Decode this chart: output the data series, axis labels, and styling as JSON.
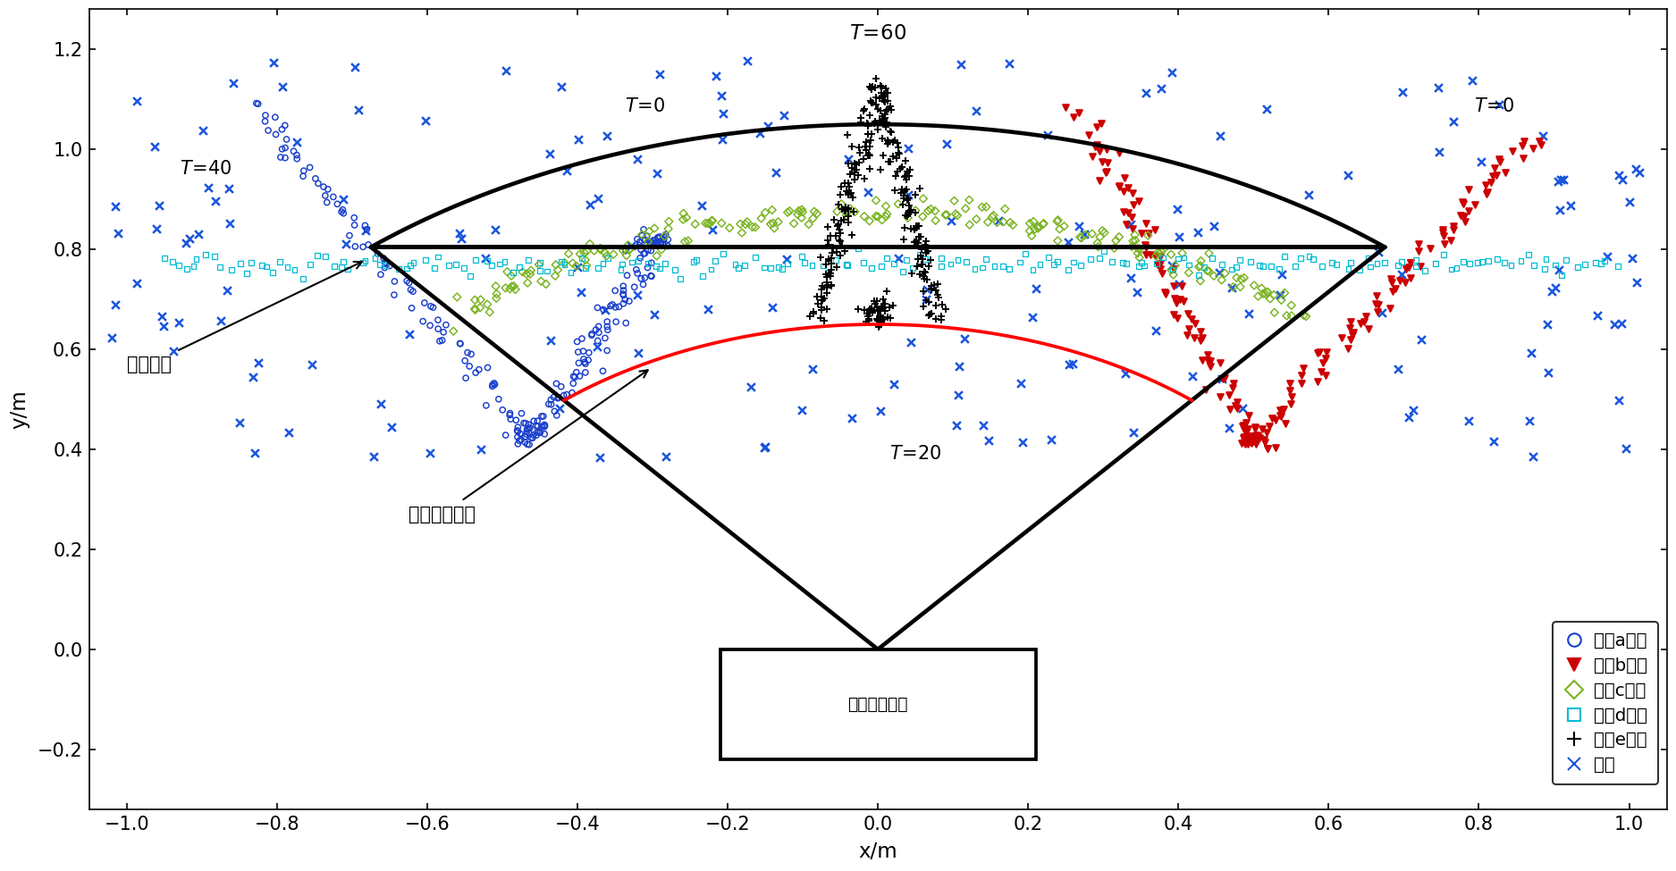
{
  "title": "T=60",
  "xlabel": "x/m",
  "ylabel": "y/m",
  "xlim": [
    -1.05,
    1.05
  ],
  "ylim": [
    -0.32,
    1.28
  ],
  "bg_color": "#ffffff",
  "legend_labels": [
    "目标a点迹",
    "目标b点迹",
    "目标c点迹",
    "目标d点迹",
    "目标e点迹",
    "杂波"
  ],
  "annotation_detection": "检测区域",
  "annotation_charging": "充电警戜区域",
  "annotation_device": "无线充电装置",
  "color_a": "#1a3fcc",
  "color_b": "#cc0000",
  "color_c": "#7ab320",
  "color_d": "#00bcd4",
  "color_e": "#000000",
  "color_clutter": "#1a55dd"
}
